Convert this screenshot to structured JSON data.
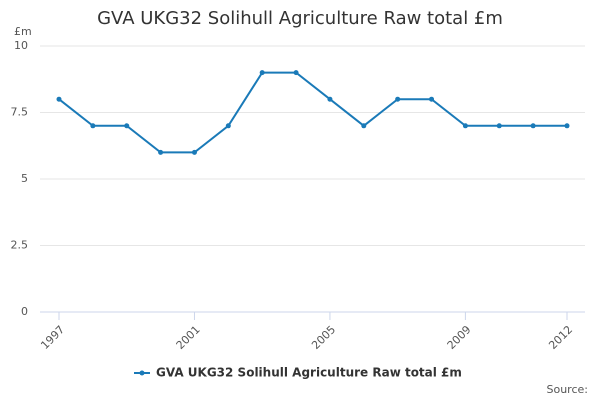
{
  "chart_data": {
    "type": "line",
    "title": "GVA UKG32 Solihull Agriculture Raw total £m",
    "y_label": "£m",
    "source": "Source:",
    "x": [
      1997,
      1998,
      1999,
      2000,
      2001,
      2002,
      2003,
      2004,
      2005,
      2006,
      2007,
      2008,
      2009,
      2010,
      2011,
      2012
    ],
    "xlim": [
      1997,
      2012
    ],
    "xticks": [
      1997,
      2001,
      2005,
      2009,
      2012
    ],
    "ylim": [
      0,
      10
    ],
    "yticks": [
      0,
      2.5,
      5,
      7.5,
      10
    ],
    "grid": true,
    "series": [
      {
        "name": "GVA UKG32 Solihull Agriculture Raw total £m",
        "color": "#1a7ab8",
        "values": [
          8,
          7,
          7,
          6,
          6,
          7,
          9,
          9,
          8,
          7,
          8,
          8,
          7,
          7,
          7,
          7
        ]
      }
    ]
  }
}
